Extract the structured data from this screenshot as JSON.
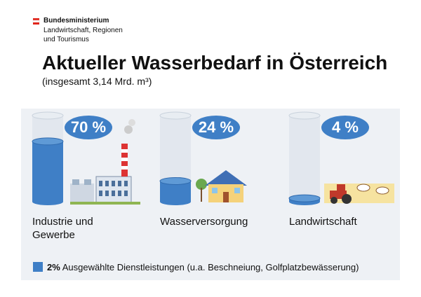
{
  "chart_data": {
    "type": "cylinder",
    "header": [
      "Bundesministerium",
      "Landwirtschaft, Regionen",
      "und Tourismus"
    ],
    "title": "Aktueller Wasserbedarf in Österreich",
    "subtitle": "(insgesamt 3,14 Mrd. m³)",
    "categories": [
      "Industrie und Gewerbe",
      "Wasserversorgung",
      "Landwirtschaft"
    ],
    "values": [
      70,
      24,
      4
    ],
    "value_labels": [
      "70 %",
      "24 %",
      "4 %"
    ],
    "color": "#3f7fc6",
    "ylim": [
      0,
      100
    ],
    "note": {
      "value": 2,
      "label": "2%",
      "text": "Ausgewählte Dienstleistungen (u.a. Beschneiung, Golfplatzbewässerung)"
    }
  }
}
